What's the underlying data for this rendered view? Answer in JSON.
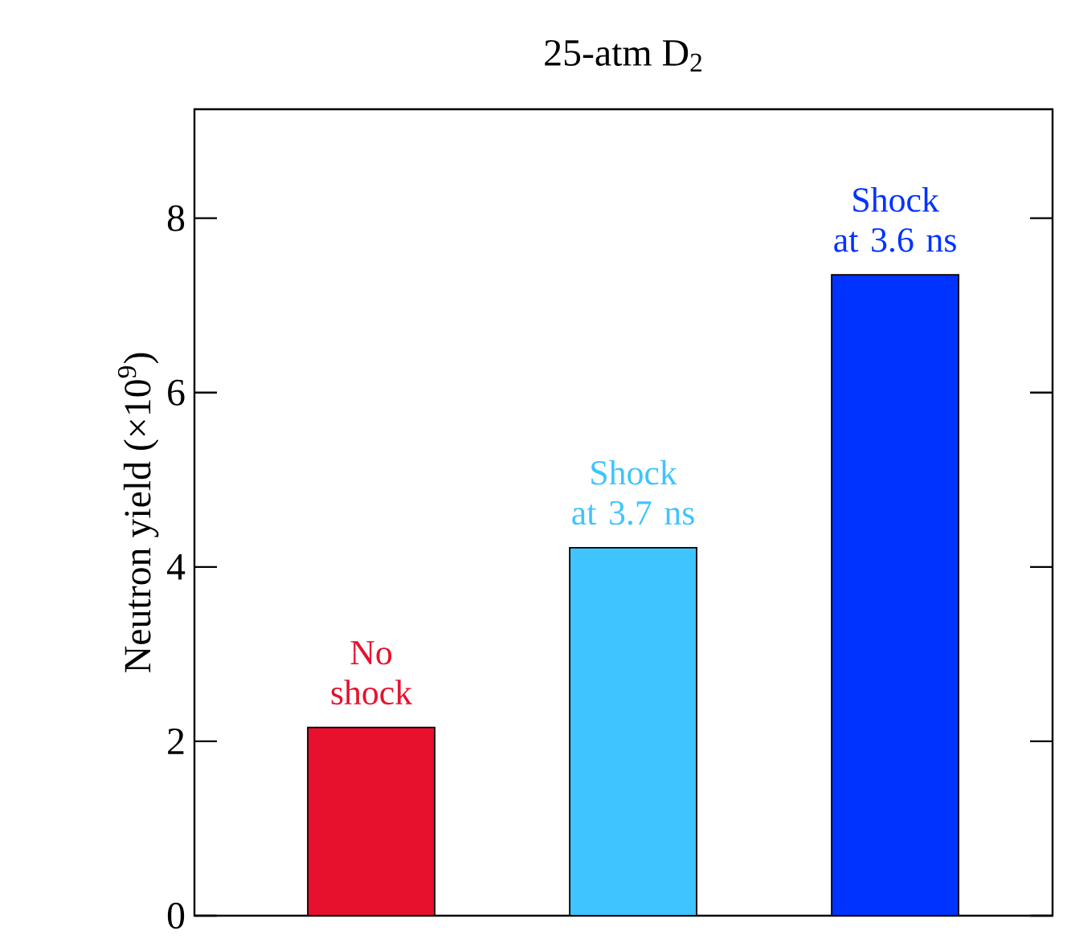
{
  "chart_data": {
    "type": "bar",
    "title": "25-atm D$_{2}$",
    "ylabel": "Neutron yield (×10$^{9}$)",
    "categories": [
      "No shock",
      "Shock at 3.7 ns",
      "Shock at 3.6 ns"
    ],
    "values": [
      2.16,
      4.22,
      7.35
    ],
    "colors": [
      "#e8112d",
      "#40c4ff",
      "#0033ff"
    ],
    "ylim": [
      0,
      9.25
    ],
    "yticks": [
      0,
      2,
      4,
      6,
      8
    ],
    "grid": false
  }
}
